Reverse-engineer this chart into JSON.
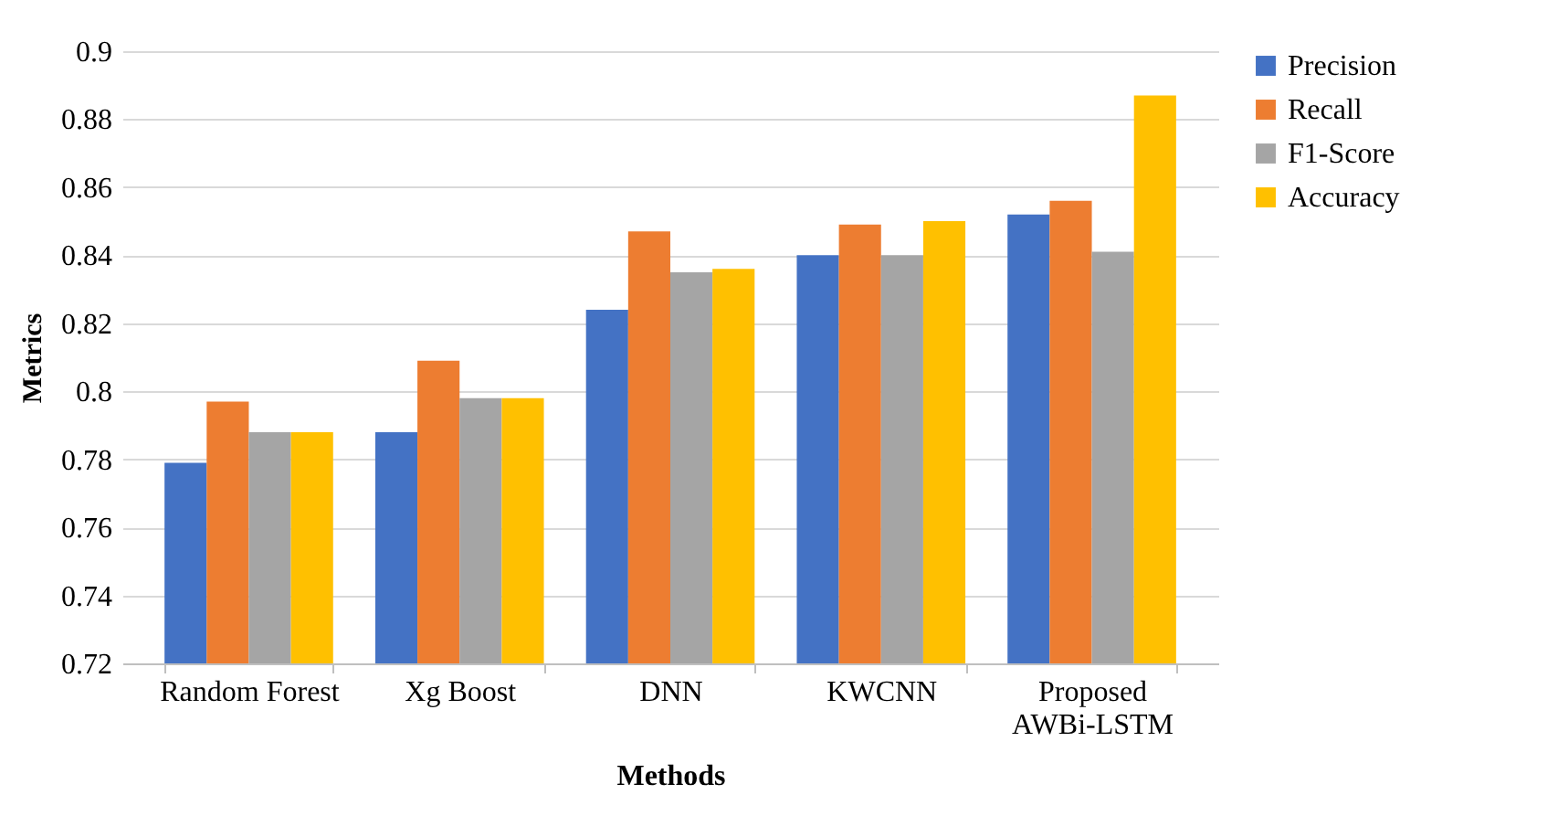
{
  "chart_data": {
    "type": "bar",
    "xlabel": "Methods",
    "ylabel": "Metrics",
    "categories": [
      "Random Forest",
      "Xg Boost",
      "DNN",
      "KWCNN",
      "Proposed AWBi-LSTM"
    ],
    "series": [
      {
        "name": "Precision",
        "color": "#4472c4",
        "values": [
          0.779,
          0.788,
          0.824,
          0.84,
          0.852
        ]
      },
      {
        "name": "Recall",
        "color": "#ed7d31",
        "values": [
          0.797,
          0.809,
          0.847,
          0.849,
          0.856
        ]
      },
      {
        "name": "F1-Score",
        "color": "#a5a5a5",
        "values": [
          0.788,
          0.798,
          0.835,
          0.84,
          0.841
        ]
      },
      {
        "name": "Accuracy",
        "color": "#ffc000",
        "values": [
          0.788,
          0.798,
          0.836,
          0.85,
          0.887
        ]
      }
    ],
    "ylim": [
      0.72,
      0.9
    ],
    "yticks": [
      0.72,
      0.74,
      0.76,
      0.78,
      0.8,
      0.82,
      0.84,
      0.86,
      0.88,
      0.9
    ],
    "grid": "y",
    "legend": "right"
  }
}
